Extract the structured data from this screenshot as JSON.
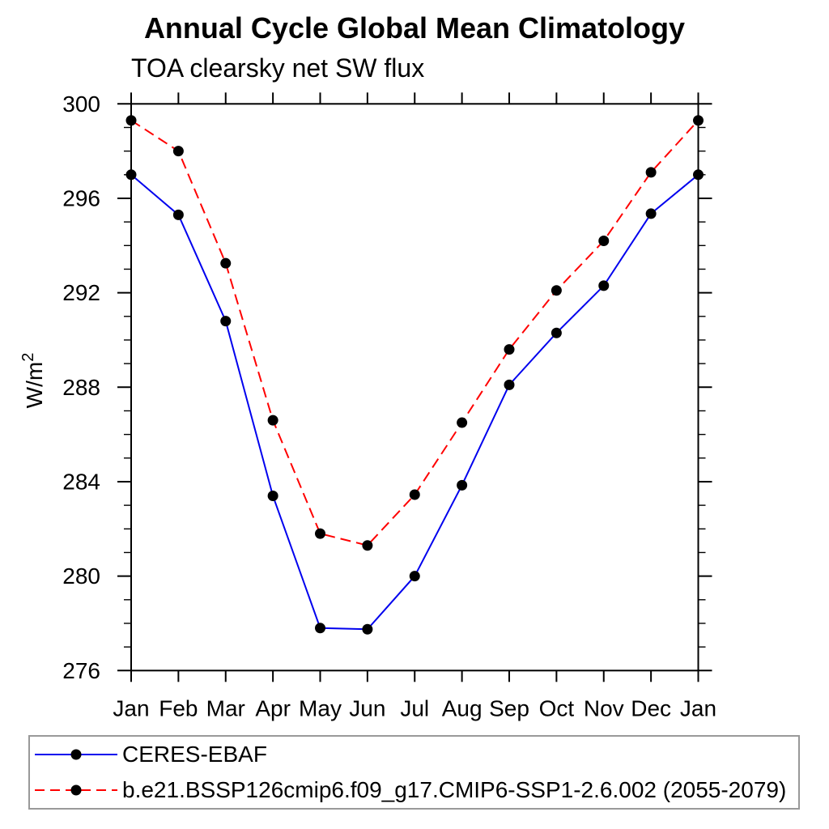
{
  "chart_data": {
    "type": "line",
    "title": "Annual Cycle Global Mean Climatology",
    "subtitle": "TOA clearsky net SW flux",
    "ylabel": "W/m²",
    "xlabel": "",
    "categories": [
      "Jan",
      "Feb",
      "Mar",
      "Apr",
      "May",
      "Jun",
      "Jul",
      "Aug",
      "Sep",
      "Oct",
      "Nov",
      "Dec",
      "Jan"
    ],
    "ylim": [
      276,
      300
    ],
    "ytick_major": [
      276,
      280,
      284,
      288,
      292,
      296,
      300
    ],
    "ytick_minor_step": 1,
    "grid": false,
    "legend_position": "bottom box, left-aligned",
    "series": [
      {
        "name": "CERES-EBAF",
        "color": "#0000ee",
        "line_style": "solid",
        "marker": "filled-circle",
        "marker_color": "#000000",
        "values": [
          297.0,
          295.3,
          290.8,
          283.4,
          277.8,
          277.75,
          280.0,
          283.85,
          288.1,
          290.3,
          292.3,
          295.35,
          297.0
        ]
      },
      {
        "name": "b.e21.BSSP126cmip6.f09_g17.CMIP6-SSP1-2.6.002 (2055-2079)",
        "color": "#ff0000",
        "line_style": "dashed",
        "marker": "filled-circle",
        "marker_color": "#000000",
        "values": [
          299.3,
          298.0,
          293.25,
          286.6,
          281.8,
          281.3,
          283.45,
          286.5,
          289.6,
          292.1,
          294.2,
          297.1,
          299.3
        ]
      }
    ]
  }
}
